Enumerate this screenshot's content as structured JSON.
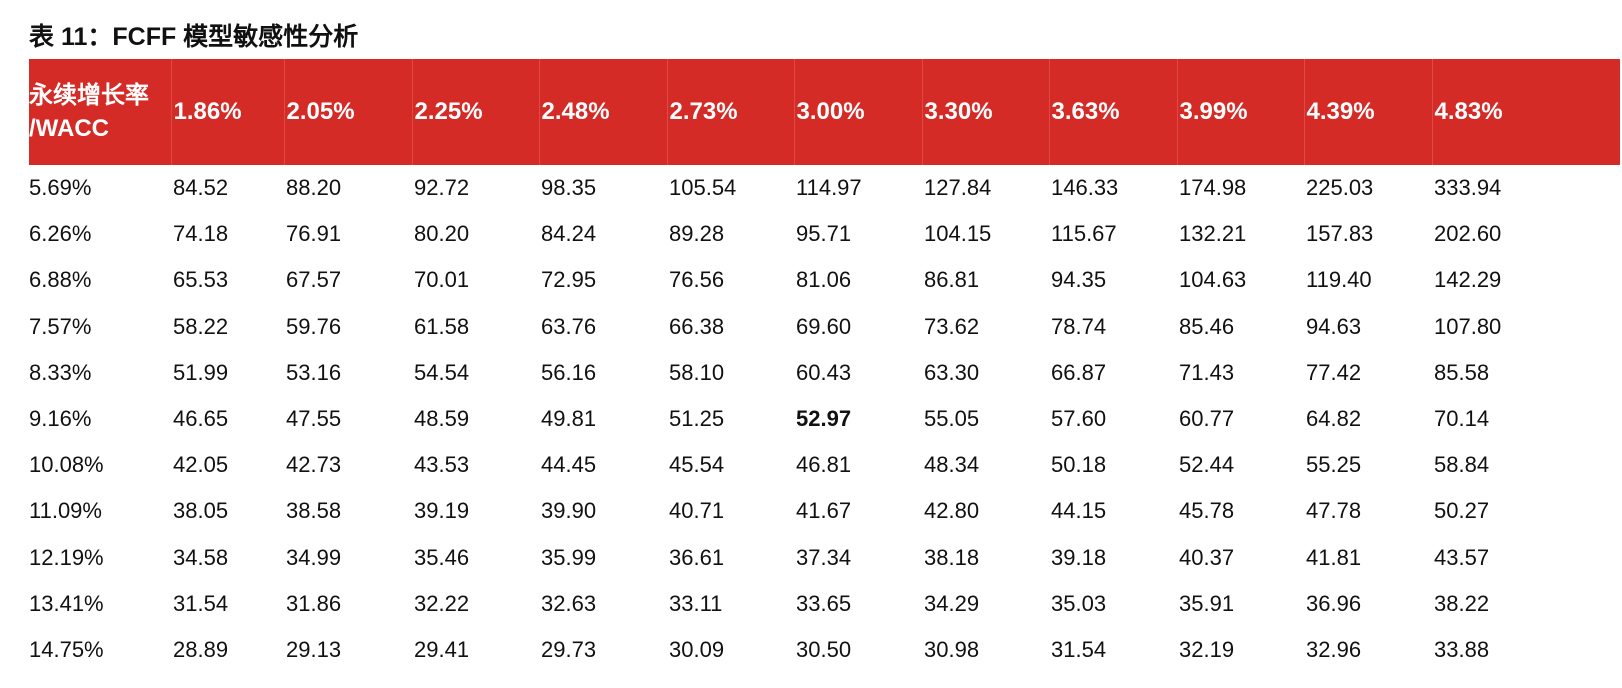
{
  "title": "表 11：FCFF 模型敏感性分析",
  "header": {
    "corner_line1": "永续增长率",
    "corner_line2": "/WACC",
    "growth_rates": [
      "1.86%",
      "2.05%",
      "2.25%",
      "2.48%",
      "2.73%",
      "3.00%",
      "3.30%",
      "3.63%",
      "3.99%",
      "4.39%",
      "4.83%"
    ]
  },
  "rows": [
    {
      "wacc": "5.69%",
      "values": [
        "84.52",
        "88.20",
        "92.72",
        "98.35",
        "105.54",
        "114.97",
        "127.84",
        "146.33",
        "174.98",
        "225.03",
        "333.94"
      ]
    },
    {
      "wacc": "6.26%",
      "values": [
        "74.18",
        "76.91",
        "80.20",
        "84.24",
        "89.28",
        "95.71",
        "104.15",
        "115.67",
        "132.21",
        "157.83",
        "202.60"
      ]
    },
    {
      "wacc": "6.88%",
      "values": [
        "65.53",
        "67.57",
        "70.01",
        "72.95",
        "76.56",
        "81.06",
        "86.81",
        "94.35",
        "104.63",
        "119.40",
        "142.29"
      ]
    },
    {
      "wacc": "7.57%",
      "values": [
        "58.22",
        "59.76",
        "61.58",
        "63.76",
        "66.38",
        "69.60",
        "73.62",
        "78.74",
        "85.46",
        "94.63",
        "107.80"
      ]
    },
    {
      "wacc": "8.33%",
      "values": [
        "51.99",
        "53.16",
        "54.54",
        "56.16",
        "58.10",
        "60.43",
        "63.30",
        "66.87",
        "71.43",
        "77.42",
        "85.58"
      ]
    },
    {
      "wacc": "9.16%",
      "values": [
        "46.65",
        "47.55",
        "48.59",
        "49.81",
        "51.25",
        "52.97",
        "55.05",
        "57.60",
        "60.77",
        "64.82",
        "70.14"
      ],
      "bold_index": 5
    },
    {
      "wacc": "10.08%",
      "values": [
        "42.05",
        "42.73",
        "43.53",
        "44.45",
        "45.54",
        "46.81",
        "48.34",
        "50.18",
        "52.44",
        "55.25",
        "58.84"
      ]
    },
    {
      "wacc": "11.09%",
      "values": [
        "38.05",
        "38.58",
        "39.19",
        "39.90",
        "40.71",
        "41.67",
        "42.80",
        "44.15",
        "45.78",
        "47.78",
        "50.27"
      ]
    },
    {
      "wacc": "12.19%",
      "values": [
        "34.58",
        "34.99",
        "35.46",
        "35.99",
        "36.61",
        "37.34",
        "38.18",
        "39.18",
        "40.37",
        "41.81",
        "43.57"
      ]
    },
    {
      "wacc": "13.41%",
      "values": [
        "31.54",
        "31.86",
        "32.22",
        "32.63",
        "33.11",
        "33.65",
        "34.29",
        "35.03",
        "35.91",
        "36.96",
        "38.22"
      ]
    },
    {
      "wacc": "14.75%",
      "values": [
        "28.89",
        "29.13",
        "29.41",
        "29.73",
        "30.09",
        "30.50",
        "30.98",
        "31.54",
        "32.19",
        "32.96",
        "33.88"
      ]
    }
  ]
}
